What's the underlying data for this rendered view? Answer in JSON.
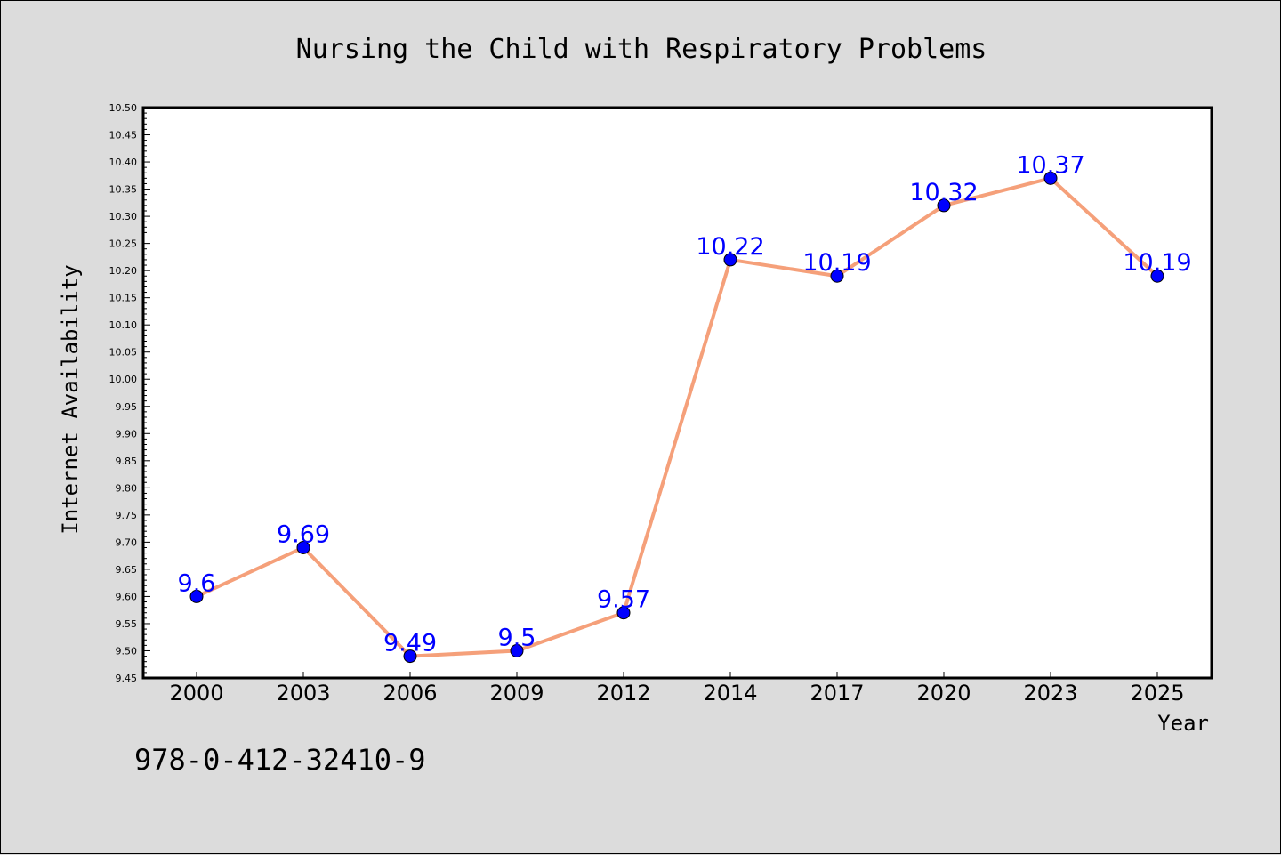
{
  "chart_data": {
    "type": "line",
    "title": "Nursing the Child with Respiratory Problems",
    "xlabel": "Year",
    "ylabel": "Internet Availability",
    "categories": [
      "2000",
      "2003",
      "2006",
      "2009",
      "2012",
      "2014",
      "2017",
      "2020",
      "2023",
      "2025"
    ],
    "series": [
      {
        "values": [
          9.6,
          9.69,
          9.49,
          9.5,
          9.57,
          10.22,
          10.19,
          10.32,
          10.37,
          10.19
        ],
        "labels": [
          "9.6",
          "9.69",
          "9.49",
          "9.5",
          "9.57",
          "10.22",
          "10.19",
          "10.32",
          "10.37",
          "10.19"
        ],
        "line_color": "#f5a07a",
        "marker_color": "#0000ff"
      }
    ],
    "ylim": [
      9.45,
      10.5
    ],
    "yticks": [
      "9.45",
      "9.50",
      "9.55",
      "9.60",
      "9.65",
      "9.70",
      "9.75",
      "9.80",
      "9.85",
      "9.90",
      "9.95",
      "10.00",
      "10.05",
      "10.10",
      "10.15",
      "10.20",
      "10.25",
      "10.30",
      "10.35",
      "10.40",
      "10.45",
      "10.50"
    ],
    "grid": false,
    "label_color": "#0000ff"
  },
  "footnote": "978-0-412-32410-9",
  "colors": {
    "background": "#dcdcdc",
    "plot_background": "#ffffff"
  }
}
